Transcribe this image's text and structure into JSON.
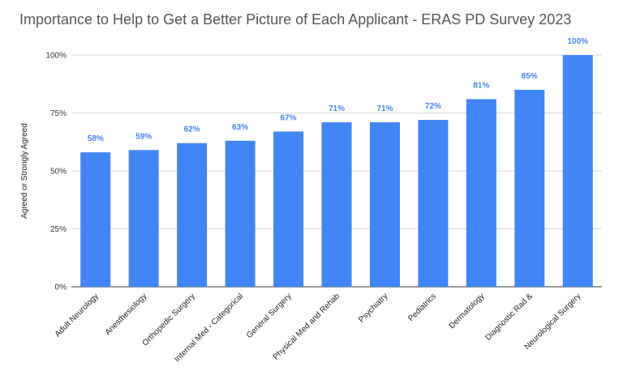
{
  "chart_data": {
    "type": "bar",
    "title": "Importance to Help to Get a Better Picture of Each Applicant - ERAS PD Survey 2023",
    "xlabel": "",
    "ylabel": "Agreed or Strongly Agreed",
    "ylim": [
      0,
      100
    ],
    "yticks": [
      0,
      25,
      50,
      75,
      100
    ],
    "ytick_labels": [
      "0%",
      "25%",
      "50%",
      "75%",
      "100%"
    ],
    "grid": true,
    "bar_color": "#4285f4",
    "categories": [
      "Adult Neurology",
      "Anesthesiology",
      "Orthopedic Surgery",
      "Internal Med - Categorical",
      "General Surgery",
      "Physical Med and Rehab",
      "Psychiatry",
      "Pediatrics",
      "Dermatology",
      "Diagnostic Rad &",
      "Neurological Surgery"
    ],
    "values": [
      58,
      59,
      62,
      63,
      67,
      71,
      71,
      72,
      81,
      85,
      100
    ],
    "value_labels": [
      "58%",
      "59%",
      "62%",
      "63%",
      "67%",
      "71%",
      "71%",
      "72%",
      "81%",
      "85%",
      "100%"
    ]
  }
}
